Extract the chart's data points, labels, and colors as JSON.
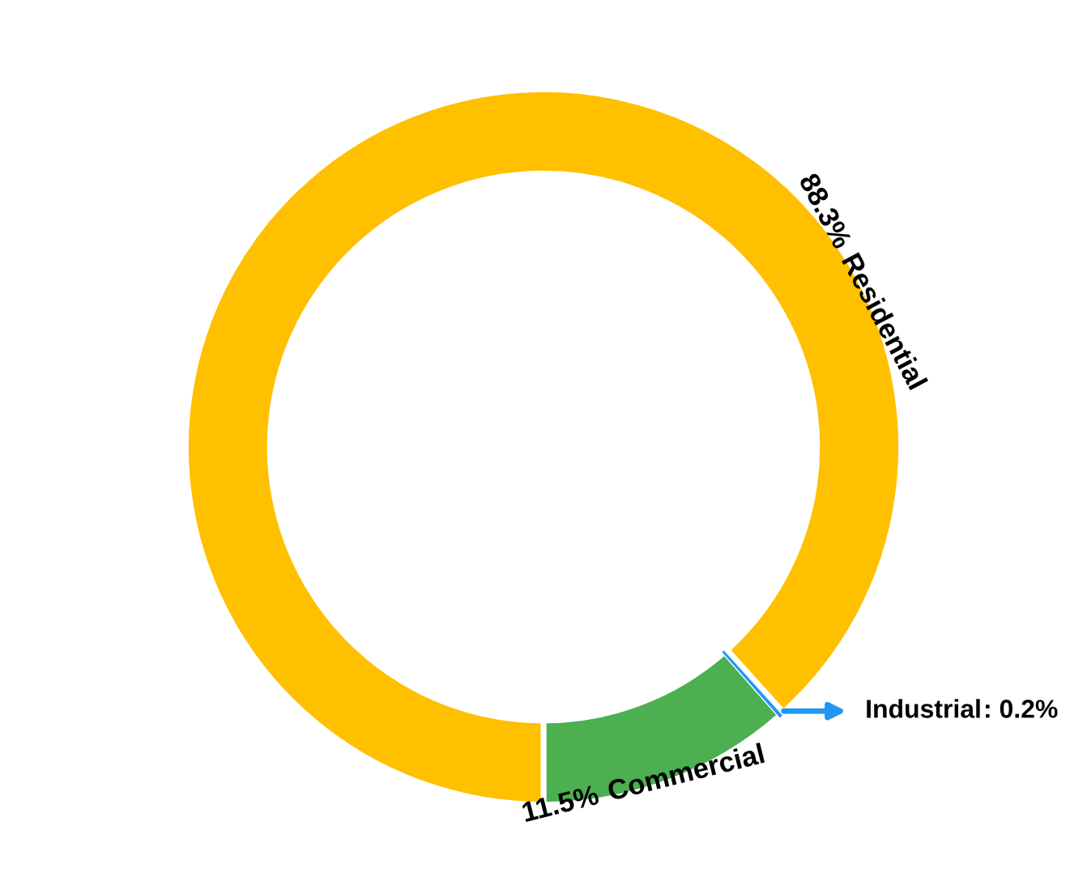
{
  "chart_data": {
    "type": "donut",
    "categories": [
      "Commercial",
      "Industrial",
      "Residential"
    ],
    "values": [
      11.5,
      0.2,
      88.3
    ],
    "colors": [
      "#4caf50",
      "#2196f3",
      "#ffc000"
    ],
    "value_labels": [
      "11.5%",
      ": 0.2%",
      "88.3%"
    ]
  }
}
